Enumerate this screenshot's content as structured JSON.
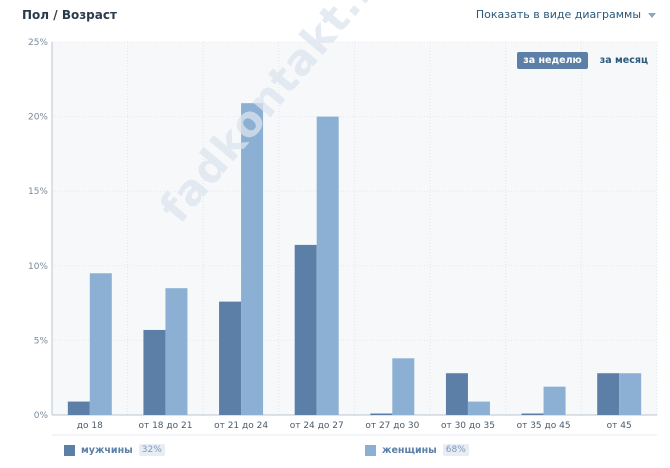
{
  "header": {
    "title": "Пол / Возраст",
    "view_toggle_label": "Показать в виде диаграммы"
  },
  "period": {
    "week_label": "за неделю",
    "month_label": "за месяц",
    "active": "week"
  },
  "watermark": "fadkontakt.ru",
  "legend": [
    {
      "label": "мужчины",
      "percent": "32%",
      "color": "#5b7fa6"
    },
    {
      "label": "женщины",
      "percent": "68%",
      "color": "#8bb0d3"
    }
  ],
  "chart_data": {
    "type": "bar",
    "categories": [
      "до 18",
      "от 18 до 21",
      "от 21 до 24",
      "от 24 до 27",
      "от 27 до 30",
      "от 30 до 35",
      "от 35 до 45",
      "от 45"
    ],
    "series": [
      {
        "name": "мужчины",
        "values": [
          0.9,
          5.7,
          7.6,
          11.4,
          0.1,
          2.8,
          0.1,
          2.8
        ],
        "color": "#5b7fa6"
      },
      {
        "name": "женщины",
        "values": [
          9.5,
          8.5,
          20.9,
          20.0,
          3.8,
          0.9,
          1.9,
          2.8
        ],
        "color": "#8bb0d3"
      }
    ],
    "yticks": [
      "0%",
      "5%",
      "10%",
      "15%",
      "20%",
      "25%"
    ],
    "ylim": [
      0,
      25
    ],
    "grid": true
  }
}
